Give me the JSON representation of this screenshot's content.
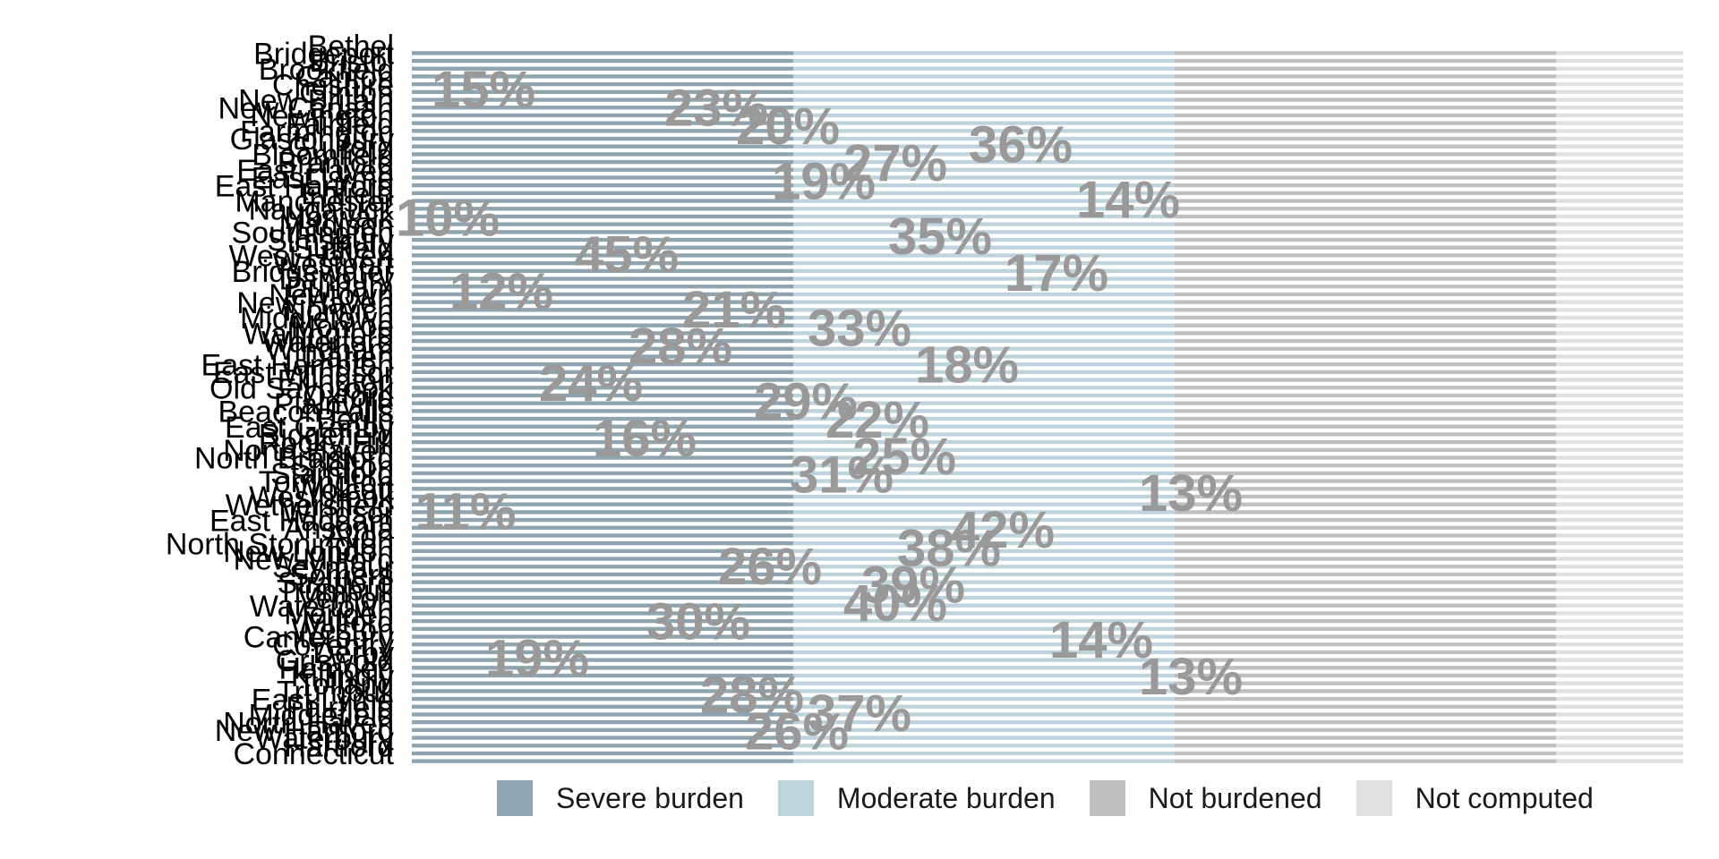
{
  "chart_data": {
    "type": "bar",
    "orientation": "horizontal",
    "stacked": true,
    "percent": true,
    "title": "",
    "xlabel": "",
    "ylabel": "",
    "xlim": [
      0,
      1
    ],
    "grid": false,
    "legend_position": "bottom",
    "categories": [
      "Bethel",
      "Bridgeport",
      "Bristol",
      "Brookfield",
      "Canton",
      "Cheshire",
      "Clinton",
      "New Britain",
      "New Canaan",
      "Newington",
      "Fairfield",
      "Farmington",
      "Glastonbury",
      "Guilford",
      "Bloomfield",
      "Branford",
      "East Haven",
      "East Lyme",
      "East Hartford",
      "Enfield",
      "Manchester",
      "Naugatuck",
      "Norwalk",
      "Madison",
      "Southington",
      "Simsbury",
      "Suffield",
      "West Haven",
      "Westport",
      "Bridgewater",
      "Danbury",
      "Durham",
      "Newtown",
      "New Haven",
      "Norwich",
      "Middletown",
      "Monroe",
      "Wallingford",
      "Waterford",
      "Windham",
      "Darien",
      "East Hampton",
      "East Windsor",
      "Ellington",
      "Old Saybrook",
      "Oxford",
      "Plainville",
      "Beacon Falls",
      "Berlin",
      "East Granby",
      "Ridgefield",
      "Rocky Hill",
      "North Haven",
      "North Branford",
      "Shelton",
      "Stamford",
      "Torrington",
      "Wolcott",
      "Westbrook",
      "Wethersfield",
      "Windsor",
      "East Haddam",
      "Ansonia",
      "Avon",
      "North Stonington",
      "New London",
      "New Milford",
      "Seymour",
      "Somers",
      "Stratford",
      "Trumbull",
      "Vernon",
      "Watertown",
      "Meriden",
      "Milford",
      "Weston",
      "Canterbury",
      "Coventry",
      "Derby",
      "Griswold",
      "Hamden",
      "Killingly",
      "Tolland",
      "Trumbull",
      "East Lyme",
      "Fairfield",
      "Middlefield",
      "North Haven",
      "New Hartford",
      "Waterbury",
      "Hartford",
      "Connecticut"
    ],
    "series": [
      {
        "name": "Severe burden",
        "color": "#8fa4ae"
      },
      {
        "name": "Moderate burden",
        "color": "#bfd3dd"
      },
      {
        "name": "Not burdened",
        "color": "#bfbfbf"
      },
      {
        "name": "Not computed",
        "color": "#e0e0e0"
      }
    ],
    "value_labels": [
      "15%",
      "23%",
      "20%",
      "36%",
      "27%",
      "19%",
      "14%",
      "10%",
      "35%",
      "45%",
      "17%",
      "12%",
      "21%",
      "33%",
      "28%",
      "18%",
      "24%",
      "29%",
      "22%",
      "16%",
      "25%",
      "31%",
      "13%",
      "11%",
      "42%",
      "38%",
      "26%",
      "39%",
      "40%",
      "30%",
      "14%",
      "19%",
      "13%",
      "28%",
      "37%",
      "26%"
    ]
  },
  "legend": {
    "items": [
      {
        "label": "Severe burden",
        "color": "#8fa4ae"
      },
      {
        "label": "Moderate burden",
        "color": "#bfd3dd"
      },
      {
        "label": "Not burdened",
        "color": "#bfbfbf"
      },
      {
        "label": "Not computed",
        "color": "#e0e0e0"
      }
    ]
  }
}
